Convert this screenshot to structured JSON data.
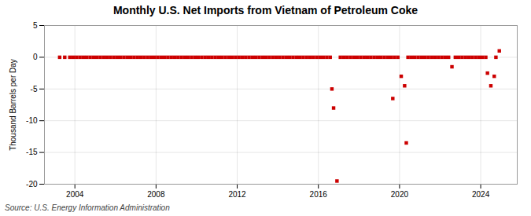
{
  "chart_data": {
    "type": "scatter",
    "title": "Monthly U.S. Net Imports from Vietnam of Petroleum Coke",
    "ylabel": "Thousand Barrels per Day",
    "source": "Source: U.S. Energy Information Administration",
    "x": [
      2003.25,
      2003.5,
      2003.75,
      2003.917,
      2004.083,
      2004.25,
      2004.417,
      2004.583,
      2004.75,
      2004.917,
      2005.083,
      2005.25,
      2005.417,
      2005.583,
      2005.75,
      2005.917,
      2006.083,
      2006.25,
      2006.417,
      2006.583,
      2006.75,
      2006.917,
      2007.083,
      2007.25,
      2007.417,
      2007.583,
      2007.75,
      2007.917,
      2008.083,
      2008.25,
      2008.417,
      2008.583,
      2008.75,
      2008.917,
      2009.083,
      2009.25,
      2009.417,
      2009.583,
      2009.75,
      2009.917,
      2010.083,
      2010.25,
      2010.417,
      2010.583,
      2010.75,
      2010.917,
      2011.083,
      2011.25,
      2011.417,
      2011.583,
      2011.75,
      2011.917,
      2012.083,
      2012.25,
      2012.417,
      2012.583,
      2012.75,
      2012.917,
      2013.083,
      2013.25,
      2013.417,
      2013.583,
      2013.75,
      2013.917,
      2014.083,
      2014.25,
      2014.417,
      2014.583,
      2014.75,
      2014.917,
      2015.083,
      2015.25,
      2015.417,
      2015.583,
      2015.75,
      2015.917,
      2016.083,
      2016.25,
      2016.417,
      2016.583,
      2016.667,
      2016.75,
      2016.917,
      2017.083,
      2017.25,
      2017.417,
      2017.583,
      2017.75,
      2017.917,
      2018.083,
      2018.25,
      2018.417,
      2018.583,
      2018.75,
      2018.917,
      2019.083,
      2019.25,
      2019.417,
      2019.583,
      2019.667,
      2019.75,
      2019.917,
      2020.083,
      2020.25,
      2020.333,
      2020.417,
      2020.583,
      2020.75,
      2020.917,
      2021.083,
      2021.25,
      2021.417,
      2021.583,
      2021.75,
      2021.917,
      2022.083,
      2022.25,
      2022.417,
      2022.583,
      2022.75,
      2022.917,
      2023.083,
      2023.25,
      2023.417,
      2023.583,
      2023.75,
      2023.917,
      2024.083,
      2024.25,
      2024.333,
      2024.5,
      2024.667,
      2024.75,
      2024.917
    ],
    "values": [
      0,
      0,
      0,
      0,
      0,
      0,
      0,
      0,
      0,
      0,
      0,
      0,
      0,
      0,
      0,
      0,
      0,
      0,
      0,
      0,
      0,
      0,
      0,
      0,
      0,
      0,
      0,
      0,
      0,
      0,
      0,
      0,
      0,
      0,
      0,
      0,
      0,
      0,
      0,
      0,
      0,
      0,
      0,
      0,
      0,
      0,
      0,
      0,
      0,
      0,
      0,
      0,
      0,
      0,
      0,
      0,
      0,
      0,
      0,
      0,
      0,
      0,
      0,
      0,
      0,
      0,
      0,
      0,
      0,
      0,
      0,
      0,
      0,
      0,
      0,
      0,
      0,
      0,
      0,
      0,
      -5.0,
      -8.0,
      -19.5,
      0,
      0,
      0,
      0,
      0,
      0,
      0,
      0,
      0,
      0,
      0,
      0,
      0,
      0,
      0,
      0,
      -6.5,
      0,
      0,
      -3.0,
      -4.5,
      -13.5,
      0,
      0,
      0,
      0,
      0,
      0,
      0,
      0,
      0,
      0,
      0,
      0,
      0,
      -1.5,
      0,
      0,
      0,
      0,
      0,
      0,
      0,
      0,
      0,
      0,
      -2.5,
      -4.5,
      -3.0,
      0,
      1.0
    ],
    "color": "#cc0000",
    "marker": "square",
    "xlim": [
      2002.5,
      2025.8
    ],
    "xticks": [
      2004,
      2008,
      2012,
      2016,
      2020,
      2024
    ],
    "ylim": [
      -20,
      5
    ],
    "yticks": [
      -20,
      -15,
      -10,
      -5,
      0,
      5
    ],
    "grid": true
  }
}
